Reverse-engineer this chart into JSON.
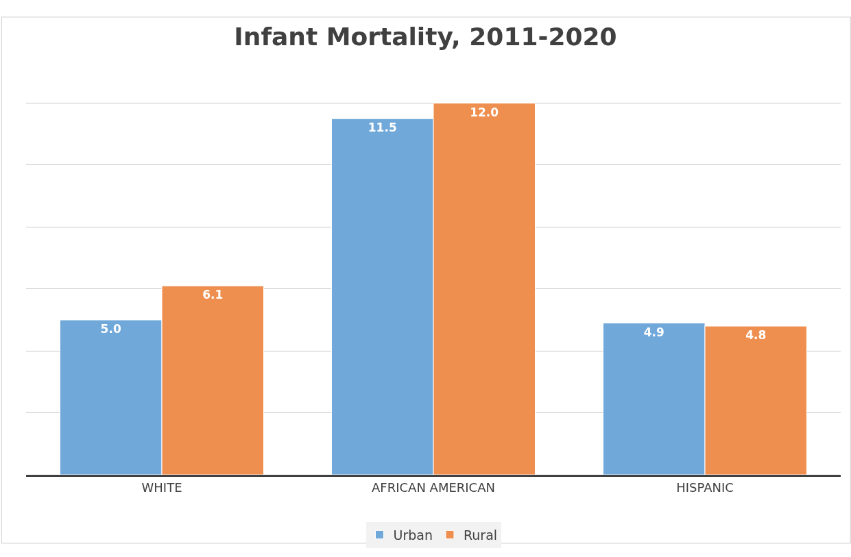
{
  "chart_data": {
    "type": "bar",
    "title": "Infant Mortality, 2011-2020",
    "categories": [
      "WHITE",
      "AFRICAN AMERICAN",
      "HISPANIC"
    ],
    "series": [
      {
        "name": "Urban",
        "color": "#70a8da",
        "values": [
          5.0,
          11.5,
          4.9
        ],
        "value_labels": [
          "5.0",
          "11.5",
          "4.9"
        ]
      },
      {
        "name": "Rural",
        "color": "#ef8f4f",
        "values": [
          6.1,
          12.0,
          4.8
        ],
        "value_labels": [
          "6.1",
          "12.0",
          "4.8"
        ]
      }
    ],
    "tick_labels": "x",
    "grid": "y",
    "legend": "bottom"
  }
}
